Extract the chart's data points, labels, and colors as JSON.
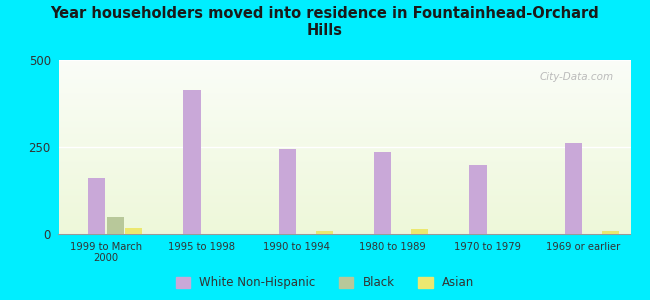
{
  "title": "Year householders moved into residence in Fountainhead-Orchard\nHills",
  "categories": [
    "1999 to March\n2000",
    "1995 to 1998",
    "1990 to 1994",
    "1980 to 1989",
    "1970 to 1979",
    "1969 or earlier"
  ],
  "white_non_hispanic": [
    160,
    415,
    245,
    235,
    198,
    262
  ],
  "black": [
    50,
    0,
    0,
    0,
    0,
    0
  ],
  "asian": [
    18,
    0,
    8,
    15,
    0,
    8
  ],
  "white_color": "#c9a8d8",
  "black_color": "#b8c89a",
  "asian_color": "#ece870",
  "bg_color": "#00eeff",
  "ylim": [
    0,
    500
  ],
  "yticks": [
    0,
    250,
    500
  ],
  "watermark": "City-Data.com",
  "bar_width": 0.18,
  "title_fontsize": 10.5,
  "legend_fontsize": 8.5
}
